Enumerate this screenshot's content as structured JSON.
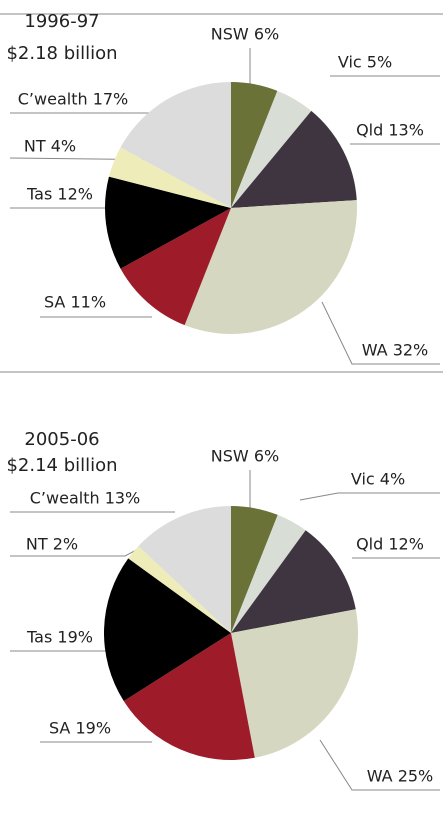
{
  "chart_data": [
    {
      "type": "pie",
      "title": "1996-97",
      "subtitle": "$2.18 billion",
      "value_labels": [
        "NSW 6%",
        "Vic 5%",
        "Qld 13%",
        "WA 32%",
        "SA 11%",
        "Tas 12%",
        "NT 4%",
        "C’wealth 17%"
      ],
      "values": [
        6,
        5,
        13,
        32,
        11,
        12,
        4,
        17
      ],
      "colors": [
        "#6b7238",
        "#d8ddd6",
        "#3f3541",
        "#d6d7c0",
        "#9e1b2a",
        "#000000",
        "#eeecb8",
        "#dcdcdc"
      ]
    },
    {
      "type": "pie",
      "title": "2005-06",
      "subtitle": "$2.14 billion",
      "value_labels": [
        "NSW 6%",
        "Vic 4%",
        "Qld 12%",
        "WA 25%",
        "SA 19%",
        "Tas 19%",
        "NT 2%",
        "C’wealth 13%"
      ],
      "values": [
        6,
        4,
        12,
        25,
        19,
        19,
        2,
        13
      ],
      "colors": [
        "#6b7238",
        "#d8ddd6",
        "#3f3541",
        "#d6d7c0",
        "#9e1b2a",
        "#000000",
        "#eeecb8",
        "#dcdcdc"
      ]
    }
  ]
}
